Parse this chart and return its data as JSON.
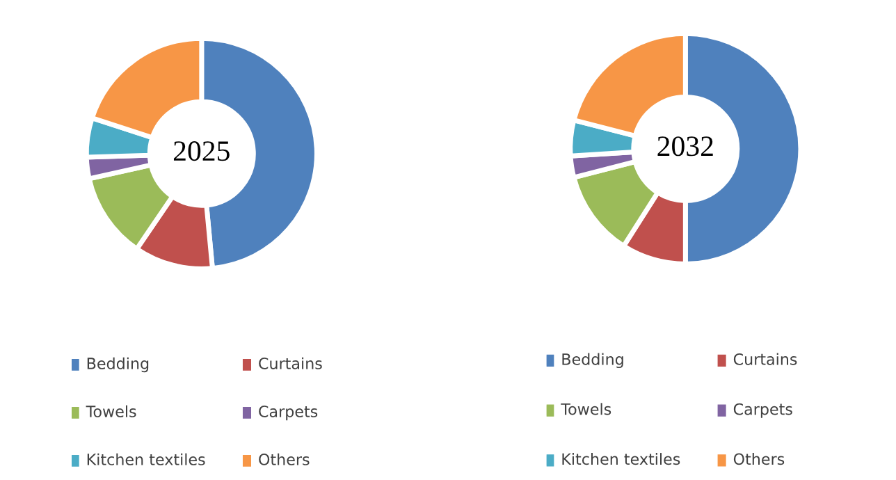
{
  "chart_data": [
    {
      "type": "donut",
      "title": "2025",
      "categories": [
        "Bedding",
        "Curtains",
        "Towels",
        "Carpets",
        "Kitchen textiles",
        "Others"
      ],
      "values": [
        48.5,
        11,
        12,
        3,
        5.5,
        20
      ],
      "colors": [
        "#4f81bd",
        "#c0504d",
        "#9bbb59",
        "#8064a2",
        "#4bacc6",
        "#f79646"
      ],
      "legend": "bottom"
    },
    {
      "type": "donut",
      "title": "2032",
      "categories": [
        "Bedding",
        "Curtains",
        "Towels",
        "Carpets",
        "Kitchen textiles",
        "Others"
      ],
      "values": [
        50,
        9,
        12,
        3,
        5,
        21
      ],
      "colors": [
        "#4f81bd",
        "#c0504d",
        "#9bbb59",
        "#8064a2",
        "#4bacc6",
        "#f79646"
      ],
      "legend": "bottom"
    }
  ]
}
